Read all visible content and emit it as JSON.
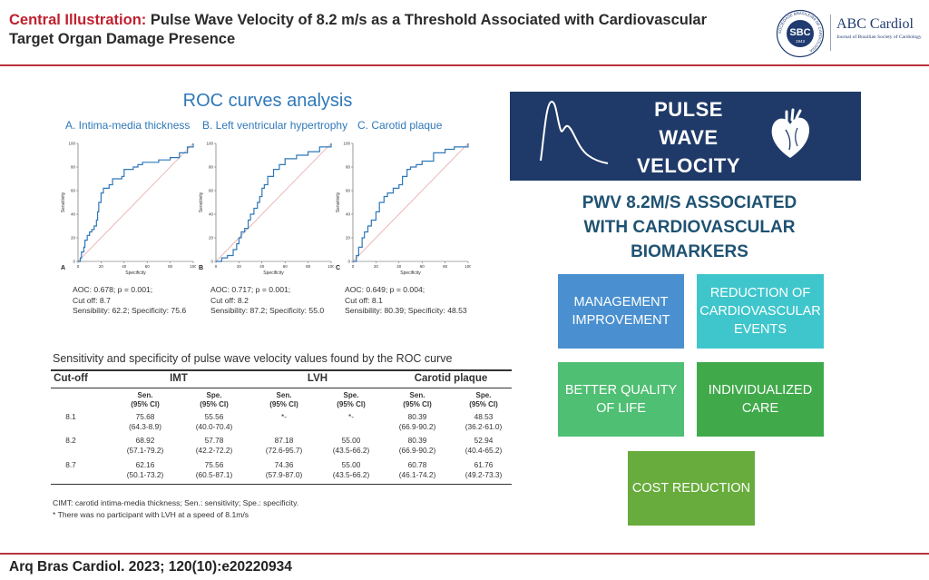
{
  "header": {
    "title_highlight": "Central Illustration:",
    "title_rest": "Pulse Wave Velocity of 8.2 m/s as a Threshold Associated with Cardiovascular Target Organ Damage Presence",
    "logo_seal_text": "SBC",
    "logo_seal_year": "1943",
    "logo_seal_ring": "SOCIEDADE BRASILEIRA DE CARDIOLOGIA",
    "logo_name": "ABC Cardiol",
    "logo_subtitle": "Journal of Brazilian Society of Cardiology",
    "accent_color": "#b8323d"
  },
  "roc": {
    "title": "ROC curves analysis",
    "panels": [
      {
        "heading": "A. Intima-media thickness",
        "letter": "A",
        "stats": [
          "AOC: 0.678; p = 0.001;",
          "Cut off: 8.7",
          "Sensibility: 62.2; Specificity: 75.6"
        ]
      },
      {
        "heading": "B. Left ventricular hypertrophy",
        "letter": "B",
        "stats": [
          "AOC: 0.717; p = 0.001;",
          "Cut off: 8.2",
          "Sensibility: 87.2; Specificity: 55.0"
        ]
      },
      {
        "heading": "C. Carotid plaque",
        "letter": "C",
        "stats": [
          "AOC: 0.649; p = 0.004;",
          "Cut off: 8.1",
          "Sensibility: 80.39; Specificity: 48.53"
        ]
      }
    ]
  },
  "chart_data": [
    {
      "type": "line",
      "title": "A. Intima-media thickness",
      "xlabel": "Specificity",
      "ylabel": "Sensitivity",
      "xlim": [
        0,
        100
      ],
      "ylim": [
        0,
        100
      ],
      "xticks": [
        0,
        20,
        40,
        60,
        80,
        100
      ],
      "yticks": [
        0,
        20,
        40,
        60,
        80,
        100
      ],
      "series": [
        {
          "points": [
            [
              0,
              0
            ],
            [
              2,
              3
            ],
            [
              3,
              8
            ],
            [
              5,
              12
            ],
            [
              6,
              18
            ],
            [
              8,
              22
            ],
            [
              10,
              25
            ],
            [
              12,
              27
            ],
            [
              14,
              30
            ],
            [
              16,
              35
            ],
            [
              17,
              42
            ],
            [
              18,
              50
            ],
            [
              20,
              58
            ],
            [
              22,
              62
            ],
            [
              27,
              65
            ],
            [
              30,
              70
            ],
            [
              38,
              72
            ],
            [
              40,
              78
            ],
            [
              48,
              80
            ],
            [
              52,
              82
            ],
            [
              56,
              84
            ],
            [
              60,
              84
            ],
            [
              70,
              86
            ],
            [
              80,
              88
            ],
            [
              88,
              92
            ],
            [
              95,
              97
            ],
            [
              100,
              100
            ]
          ]
        },
        {
          "points": [
            [
              0,
              0
            ],
            [
              100,
              100
            ]
          ]
        }
      ]
    },
    {
      "type": "line",
      "title": "B. Left ventricular hypertrophy",
      "xlabel": "Specificity",
      "ylabel": "Sensitivity",
      "xlim": [
        0,
        100
      ],
      "ylim": [
        0,
        100
      ],
      "xticks": [
        0,
        20,
        40,
        60,
        80,
        100
      ],
      "yticks": [
        0,
        20,
        40,
        60,
        80,
        100
      ],
      "series": [
        {
          "points": [
            [
              0,
              0
            ],
            [
              5,
              3
            ],
            [
              10,
              5
            ],
            [
              15,
              10
            ],
            [
              18,
              15
            ],
            [
              20,
              20
            ],
            [
              22,
              25
            ],
            [
              25,
              28
            ],
            [
              28,
              35
            ],
            [
              30,
              40
            ],
            [
              33,
              45
            ],
            [
              36,
              50
            ],
            [
              38,
              55
            ],
            [
              40,
              62
            ],
            [
              42,
              65
            ],
            [
              45,
              72
            ],
            [
              50,
              78
            ],
            [
              55,
              82
            ],
            [
              60,
              87
            ],
            [
              70,
              90
            ],
            [
              80,
              93
            ],
            [
              90,
              97
            ],
            [
              100,
              100
            ]
          ]
        },
        {
          "points": [
            [
              0,
              0
            ],
            [
              100,
              100
            ]
          ]
        }
      ]
    },
    {
      "type": "line",
      "title": "C. Carotid plaque",
      "xlabel": "Specificity",
      "ylabel": "Sensitivity",
      "xlim": [
        0,
        100
      ],
      "ylim": [
        0,
        100
      ],
      "xticks": [
        0,
        20,
        40,
        60,
        80,
        100
      ],
      "yticks": [
        0,
        20,
        40,
        60,
        80,
        100
      ],
      "series": [
        {
          "points": [
            [
              0,
              0
            ],
            [
              3,
              5
            ],
            [
              5,
              12
            ],
            [
              8,
              20
            ],
            [
              10,
              25
            ],
            [
              13,
              30
            ],
            [
              16,
              35
            ],
            [
              20,
              42
            ],
            [
              23,
              50
            ],
            [
              27,
              55
            ],
            [
              30,
              58
            ],
            [
              35,
              62
            ],
            [
              40,
              65
            ],
            [
              43,
              72
            ],
            [
              47,
              78
            ],
            [
              50,
              80
            ],
            [
              55,
              82
            ],
            [
              60,
              85
            ],
            [
              70,
              92
            ],
            [
              80,
              95
            ],
            [
              88,
              97
            ],
            [
              100,
              100
            ]
          ]
        },
        {
          "points": [
            [
              0,
              0
            ],
            [
              100,
              100
            ]
          ]
        }
      ]
    }
  ],
  "table": {
    "caption": "Sensitivity and specificity of pulse wave velocity values found by the ROC curve",
    "cutoff_header": "Cut-off",
    "groups": [
      "IMT",
      "LVH",
      "Carotid plaque"
    ],
    "sub_headers": [
      [
        "Sen.",
        "(95% CI)"
      ],
      [
        "Spe.",
        "(95% CI)"
      ],
      [
        "Sen.",
        "(95% CI)"
      ],
      [
        "Spe.",
        "(95% Cl)"
      ],
      [
        "Sen.",
        "(95% CI)"
      ],
      [
        "Spe.",
        "(95% CI)"
      ]
    ],
    "rows": [
      {
        "cutoff": "8.1",
        "cells": [
          [
            "75.68",
            "(64.3-8.9)"
          ],
          [
            "55.56",
            "(40.0-70.4)"
          ],
          [
            "*-",
            ""
          ],
          [
            "*-",
            ""
          ],
          [
            "80.39",
            "(66.9-90.2)"
          ],
          [
            "48.53",
            "(36.2-61.0)"
          ]
        ]
      },
      {
        "cutoff": "8.2",
        "cells": [
          [
            "68.92",
            "(57.1-79.2)"
          ],
          [
            "57.78",
            "(42.2-72.2)"
          ],
          [
            "87.18",
            "(72.6-95.7)"
          ],
          [
            "55.00",
            "(43.5-66.2)"
          ],
          [
            "80.39",
            "(66.9-90.2)"
          ],
          [
            "52.94",
            "(40.4-65.2)"
          ]
        ]
      },
      {
        "cutoff": "8.7",
        "cells": [
          [
            "62.16",
            "(50.1-73.2)"
          ],
          [
            "75.56",
            "(60.5-87.1)"
          ],
          [
            "74.36",
            "(57.9-87.0)"
          ],
          [
            "55.00",
            "(43.5-66.2)"
          ],
          [
            "60.78",
            "(46.1-74.2)"
          ],
          [
            "61.76",
            "(49.2-73.3)"
          ]
        ]
      }
    ],
    "notes": [
      "CIMT: carotid intima-media thickness; Sen.: sensitivity; Spe.: specificity.",
      "* There was no participant with LVH at a speed of 8.1m/s"
    ]
  },
  "pwv": {
    "banner_lines": [
      "PULSE",
      "WAVE",
      "VELOCITY"
    ],
    "banner_color": "#1f3a68",
    "association_lines": [
      "PWV 8.2M/S ASSOCIATED",
      "WITH CARDIOVASCULAR",
      "BIOMARKERS"
    ],
    "pulse-wave-icon": "pulse-wave-icon",
    "heart-icon": "heart-icon"
  },
  "outcomes": [
    {
      "label": "MANAGEMENT IMPROVEMENT",
      "color": "#4a90d0"
    },
    {
      "label": "REDUCTION OF CARDIOVASCULAR EVENTS",
      "color": "#3fc6cc"
    },
    {
      "label": "BETTER QUALITY OF LIFE",
      "color": "#4fbf73"
    },
    {
      "label": "INDIVIDUALIZED CARE",
      "color": "#40a94a"
    },
    {
      "label": "COST REDUCTION",
      "color": "#67ac3c"
    }
  ],
  "footer": {
    "citation": "Arq Bras Cardiol. 2023; 120(10):e20220934"
  }
}
